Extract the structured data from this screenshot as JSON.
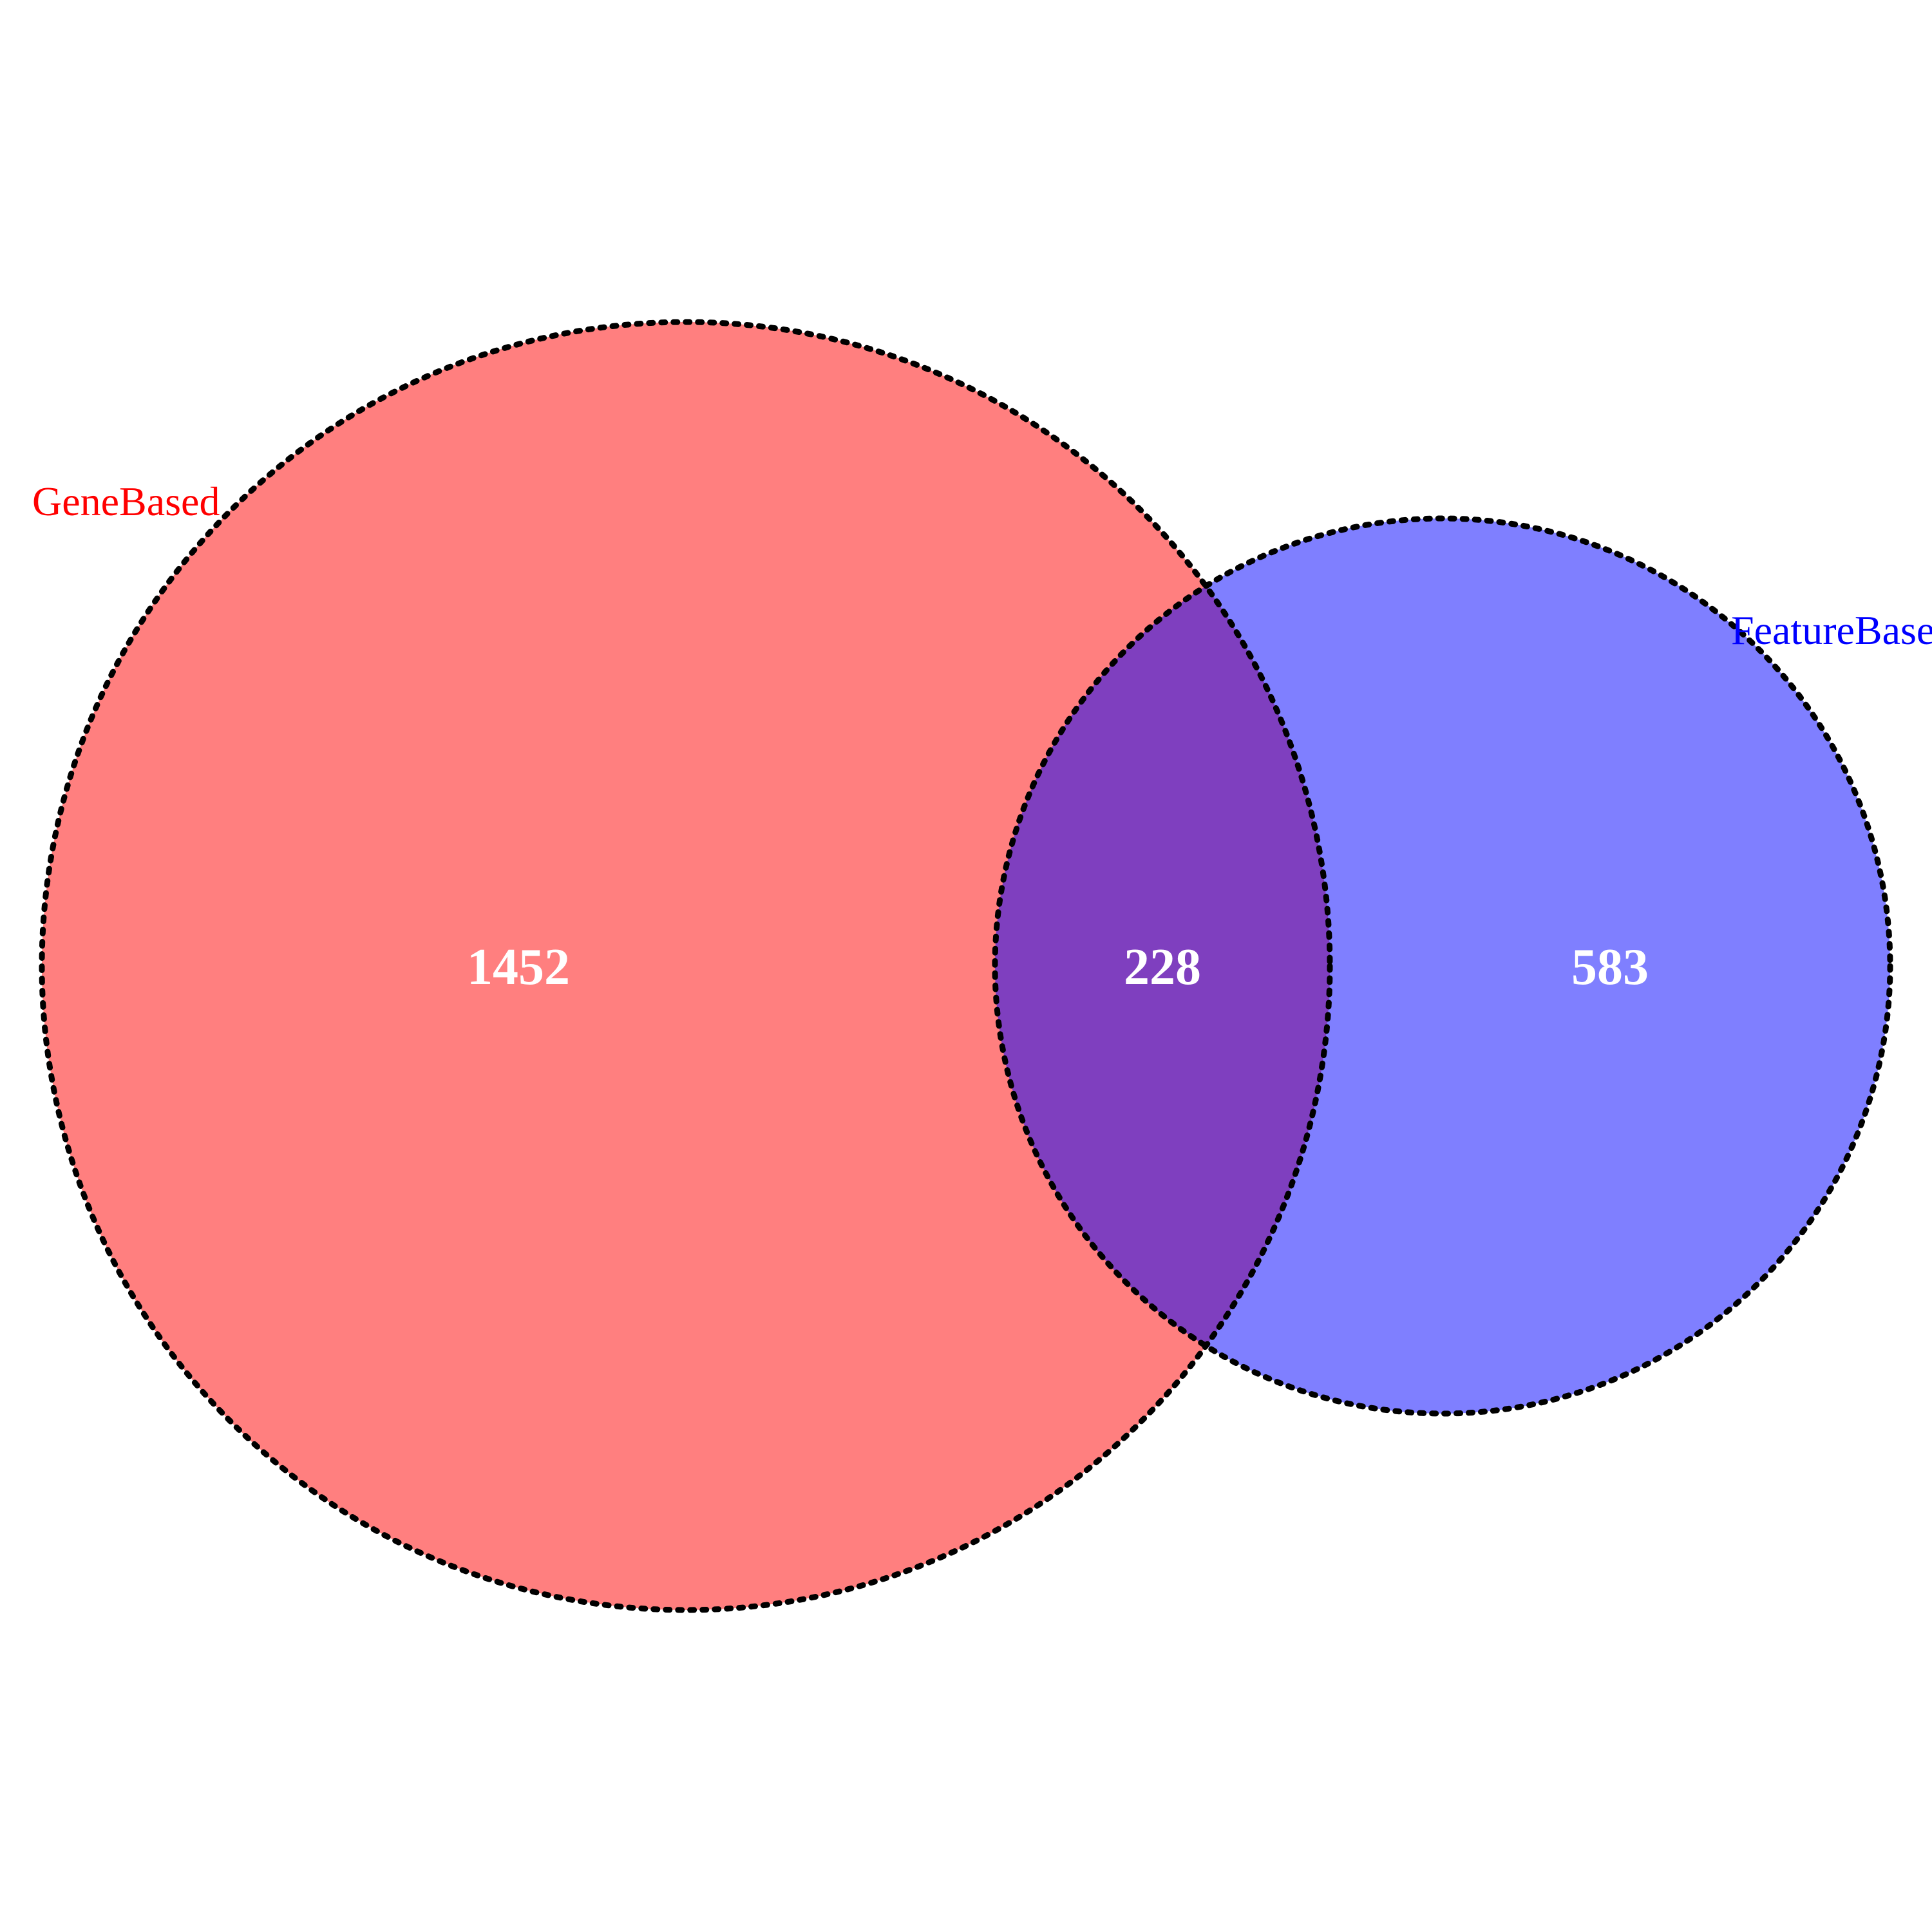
{
  "diagram": {
    "type": "venn",
    "sets": [
      {
        "id": "A",
        "label": "GeneBased",
        "color": "#ff0000",
        "fill_opacity": 0.5
      },
      {
        "id": "B",
        "label": "FeatureBased",
        "color": "#0000ff",
        "fill_opacity": 0.5
      }
    ],
    "regions": {
      "A_only": "1452",
      "A_and_B": "228",
      "B_only": "583"
    },
    "outline": {
      "color": "#000000",
      "style": "dotted"
    },
    "count_color": "#ffffff"
  }
}
